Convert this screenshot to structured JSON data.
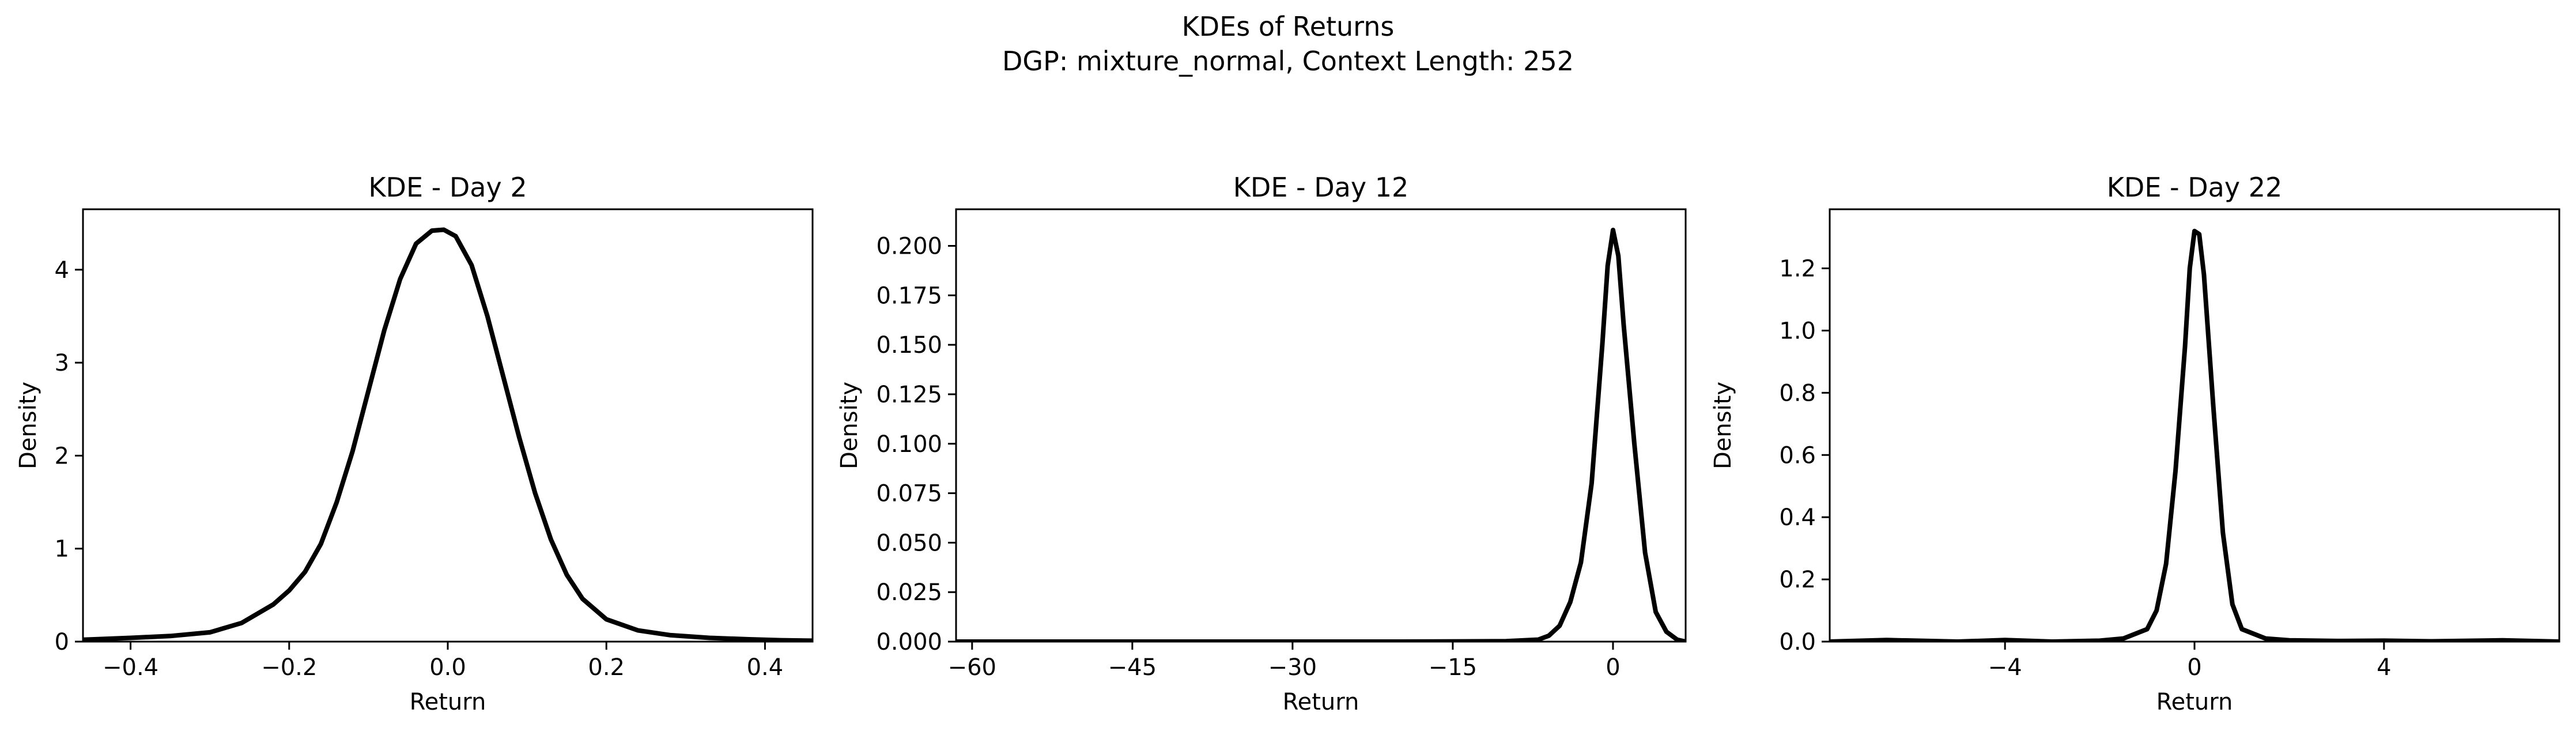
{
  "figure": {
    "title": "KDEs of Returns",
    "subtitle": "DGP: mixture_normal, Context Length: 252"
  },
  "chart_data": [
    {
      "type": "line",
      "title": "KDE - Day 2",
      "xlabel": "Return",
      "ylabel": "Density",
      "xlim": [
        -0.46,
        0.46
      ],
      "ylim": [
        0,
        4.65
      ],
      "xticks": [
        -0.4,
        -0.2,
        0.0,
        0.2,
        0.4
      ],
      "xtick_labels": [
        "−0.4",
        "−0.2",
        "0.0",
        "0.2",
        "0.4"
      ],
      "yticks": [
        0,
        1,
        2,
        3,
        4
      ],
      "ytick_labels": [
        "0",
        "1",
        "2",
        "3",
        "4"
      ],
      "series": [
        {
          "color": "#000000",
          "x": [
            -0.46,
            -0.4,
            -0.35,
            -0.3,
            -0.26,
            -0.22,
            -0.2,
            -0.18,
            -0.16,
            -0.14,
            -0.12,
            -0.1,
            -0.08,
            -0.06,
            -0.04,
            -0.02,
            -0.005,
            0.01,
            0.03,
            0.05,
            0.07,
            0.09,
            0.11,
            0.13,
            0.15,
            0.17,
            0.2,
            0.24,
            0.28,
            0.33,
            0.38,
            0.42,
            0.46
          ],
          "y": [
            0.02,
            0.04,
            0.06,
            0.1,
            0.2,
            0.4,
            0.55,
            0.75,
            1.05,
            1.5,
            2.05,
            2.7,
            3.35,
            3.9,
            4.28,
            4.42,
            4.43,
            4.36,
            4.05,
            3.5,
            2.85,
            2.2,
            1.6,
            1.1,
            0.72,
            0.46,
            0.24,
            0.12,
            0.07,
            0.04,
            0.025,
            0.015,
            0.01
          ]
        }
      ]
    },
    {
      "type": "line",
      "title": "KDE - Day 12",
      "xlabel": "Return",
      "ylabel": "Density",
      "xlim": [
        -61.5,
        6.8
      ],
      "ylim": [
        0,
        0.2185
      ],
      "xticks": [
        -60,
        -45,
        -30,
        -15,
        0
      ],
      "xtick_labels": [
        "−60",
        "−45",
        "−30",
        "−15",
        "0"
      ],
      "yticks": [
        0.0,
        0.025,
        0.05,
        0.075,
        0.1,
        0.125,
        0.15,
        0.175,
        0.2
      ],
      "ytick_labels": [
        "0.000",
        "0.025",
        "0.050",
        "0.075",
        "0.100",
        "0.125",
        "0.150",
        "0.175",
        "0.200"
      ],
      "series": [
        {
          "color": "#000000",
          "x": [
            -61.5,
            -40,
            -20,
            -10,
            -7,
            -6,
            -5,
            -4,
            -3,
            -2,
            -1,
            -0.5,
            0,
            0.5,
            1,
            2,
            3,
            4,
            5,
            6,
            6.8
          ],
          "y": [
            0.0,
            0.0,
            0.0,
            0.0002,
            0.001,
            0.003,
            0.008,
            0.02,
            0.04,
            0.08,
            0.15,
            0.19,
            0.208,
            0.195,
            0.16,
            0.1,
            0.045,
            0.015,
            0.005,
            0.001,
            0.0
          ]
        }
      ]
    },
    {
      "type": "line",
      "title": "KDE - Day 22",
      "xlabel": "Return",
      "ylabel": "Density",
      "xlim": [
        -7.7,
        7.7
      ],
      "ylim": [
        0,
        1.39
      ],
      "xticks": [
        -4,
        0,
        4
      ],
      "xtick_labels": [
        "−4",
        "0",
        "4"
      ],
      "yticks": [
        0.0,
        0.2,
        0.4,
        0.6,
        0.8,
        1.0,
        1.2
      ],
      "ytick_labels": [
        "0.0",
        "0.2",
        "0.4",
        "0.6",
        "0.8",
        "1.0",
        "1.2"
      ],
      "series": [
        {
          "color": "#000000",
          "x": [
            -7.7,
            -6.5,
            -5,
            -4,
            -3,
            -2,
            -1.5,
            -1.0,
            -0.8,
            -0.6,
            -0.4,
            -0.2,
            -0.1,
            0.0,
            0.1,
            0.2,
            0.4,
            0.6,
            0.8,
            1.0,
            1.5,
            2,
            3,
            4,
            5,
            6.5,
            7.7
          ],
          "y": [
            0.0,
            0.005,
            0.0,
            0.005,
            0.0,
            0.003,
            0.01,
            0.04,
            0.1,
            0.25,
            0.55,
            0.95,
            1.2,
            1.32,
            1.31,
            1.18,
            0.75,
            0.35,
            0.12,
            0.04,
            0.01,
            0.004,
            0.002,
            0.003,
            0.001,
            0.004,
            0.0
          ]
        }
      ]
    }
  ]
}
